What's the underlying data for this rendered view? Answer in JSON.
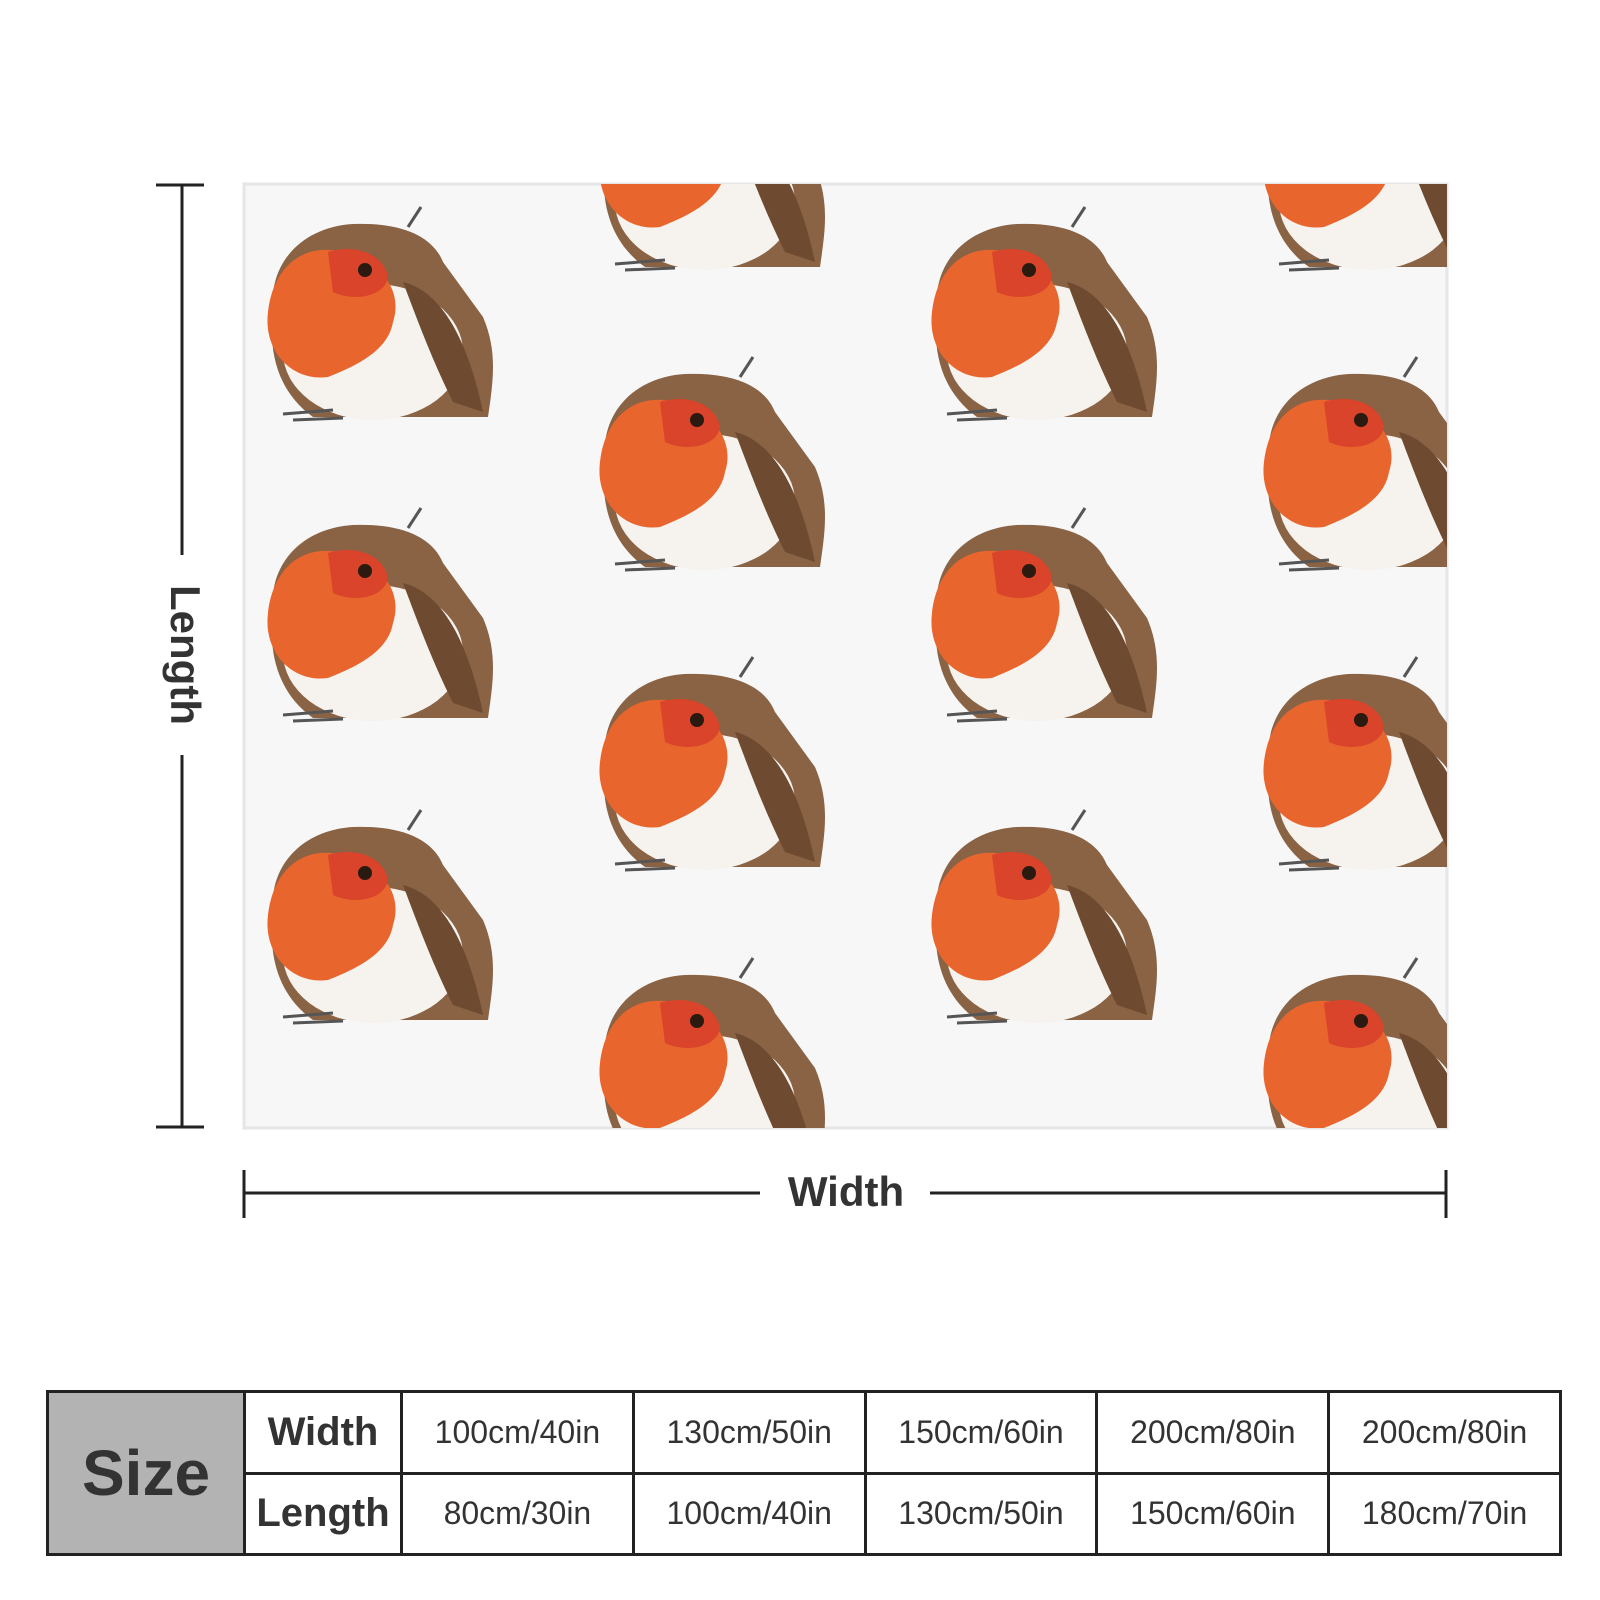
{
  "dimensions": {
    "length": "Length",
    "width": "Width"
  },
  "size_table": {
    "header": "Size",
    "rows": [
      {
        "label": "Width",
        "cells": [
          "100cm/40in",
          "130cm/50in",
          "150cm/60in",
          "200cm/80in",
          "200cm/80in"
        ]
      },
      {
        "label": "Length",
        "cells": [
          "80cm/30in",
          "100cm/40in",
          "130cm/50in",
          "150cm/60in",
          "180cm/70in"
        ]
      }
    ]
  }
}
